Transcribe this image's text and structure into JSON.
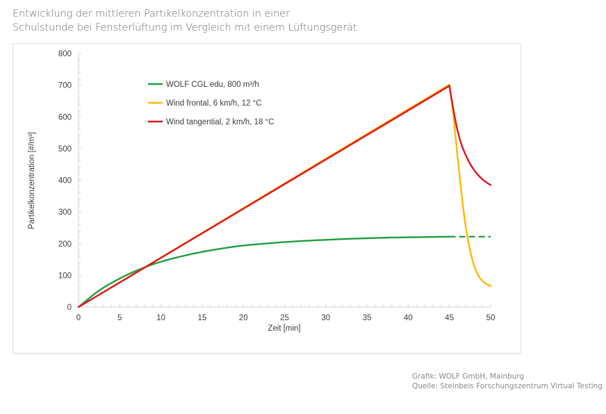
{
  "header": {
    "title_line1": "Entwicklung der mittleren Partikelkonzentration in einer",
    "title_line2": "Schulstunde bei Fensterlüftung im Vergleich mit einem Lüftungsgerät."
  },
  "credits": {
    "line1": "Grafik: WOLF GmbH, Mainburg",
    "line2": "Quelle: Steinbeis Forschungszentrum Virtual Testing"
  },
  "chart_data": {
    "type": "line",
    "title": "Entwicklung der mittleren Partikelkonzentration in einer Schulstunde bei Fensterlüftung im Vergleich mit einem Lüftungsgerät.",
    "xlabel": "Zeit [min]",
    "ylabel": "Partikelkonzentration [#/m³]",
    "xlim": [
      0,
      50
    ],
    "ylim": [
      0,
      800
    ],
    "x_ticks": [
      0,
      5,
      10,
      15,
      20,
      25,
      30,
      35,
      40,
      45,
      50
    ],
    "y_ticks": [
      0,
      100,
      200,
      300,
      400,
      500,
      600,
      700,
      800
    ],
    "grid": false,
    "legend_position": "upper-left-inside",
    "series": [
      {
        "name": "WOLF CGL edu, 800 m³/h",
        "color": "#1e9e3e",
        "x": [
          0,
          2.5,
          5,
          7.5,
          10,
          12.5,
          15,
          17.5,
          20,
          22.5,
          25,
          27.5,
          30,
          32.5,
          35,
          37.5,
          40,
          42.5,
          45
        ],
        "y": [
          0,
          52,
          90,
          120,
          143,
          160,
          174,
          185,
          194,
          200,
          205,
          209,
          212,
          215,
          217,
          219,
          220,
          221,
          222
        ],
        "extension_dashed": {
          "x": [
            45,
            50
          ],
          "y": [
            222,
            222
          ]
        }
      },
      {
        "name": "Wind frontal, 6 km/h, 12 °C",
        "color": "#ffb800",
        "x": [
          0,
          45,
          45.5,
          46,
          46.5,
          47,
          47.5,
          48,
          48.5,
          49,
          49.5,
          50
        ],
        "y": [
          0,
          702,
          600,
          470,
          350,
          250,
          180,
          130,
          100,
          82,
          72,
          67
        ]
      },
      {
        "name": "Wind tangential, 2 km/h, 18 °C",
        "color": "#e0141e",
        "x": [
          0,
          45,
          45.5,
          46,
          46.5,
          47,
          47.5,
          48,
          48.5,
          49,
          49.5,
          50
        ],
        "y": [
          0,
          698,
          620,
          555,
          510,
          478,
          452,
          432,
          416,
          403,
          393,
          385
        ]
      }
    ]
  }
}
